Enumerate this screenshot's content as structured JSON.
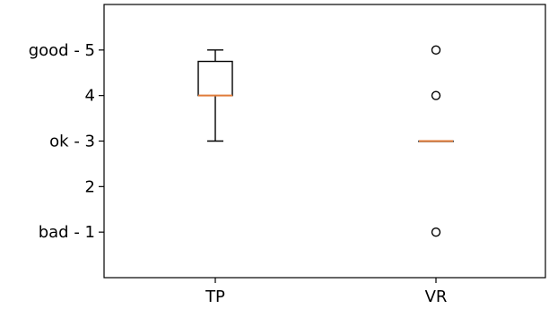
{
  "chart_data": {
    "type": "box",
    "title": "",
    "xlabel": "",
    "ylabel": "",
    "categories": [
      "TP",
      "VR"
    ],
    "ylim": [
      0,
      6
    ],
    "y_ticks": [
      {
        "value": 5,
        "label": "good - 5"
      },
      {
        "value": 4,
        "label": "4"
      },
      {
        "value": 3,
        "label": "ok - 3"
      },
      {
        "value": 2,
        "label": "2"
      },
      {
        "value": 1,
        "label": "bad - 1"
      }
    ],
    "boxes": [
      {
        "category": "TP",
        "whisker_low": 3,
        "q1": 4,
        "median": 4,
        "q3": 4.75,
        "whisker_high": 5,
        "outliers": []
      },
      {
        "category": "VR",
        "whisker_low": 3,
        "q1": 3,
        "median": 3,
        "q3": 3,
        "whisker_high": 3,
        "outliers": [
          5,
          4,
          1
        ]
      }
    ],
    "grid": false,
    "colors": {
      "box": "#000000",
      "median": "#e07b39",
      "outlier": "#000000"
    }
  }
}
